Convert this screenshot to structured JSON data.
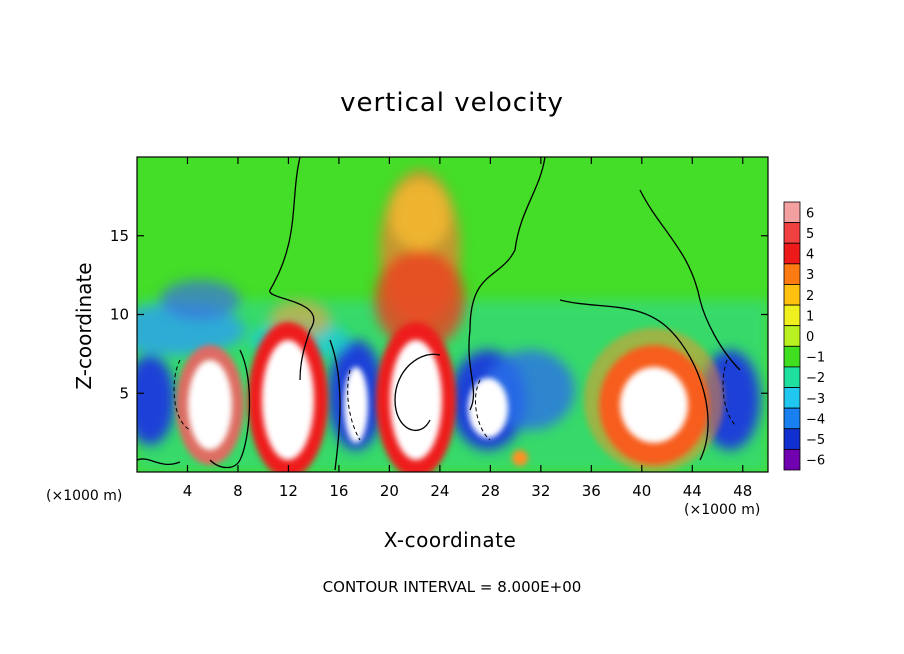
{
  "chart_data": {
    "type": "heatmap",
    "title": "vertical velocity",
    "xlabel": "X-coordinate",
    "ylabel": "Z-coordinate",
    "x_scale_label_left": "(×1000 m)",
    "x_scale_label_right": "(×1000 m)",
    "footer": "CONTOUR INTERVAL = 8.000E+00",
    "xlim": [
      0,
      50
    ],
    "ylim": [
      0,
      20
    ],
    "x_ticks": [
      4,
      8,
      12,
      16,
      20,
      24,
      28,
      32,
      36,
      40,
      44,
      48
    ],
    "x_tick_labels": [
      "4",
      "8",
      "12",
      "16",
      "20",
      "24",
      "28",
      "32",
      "36",
      "40",
      "44",
      "48"
    ],
    "y_ticks": [
      5,
      10,
      15
    ],
    "y_tick_labels": [
      "5",
      "10",
      "15"
    ],
    "colorbar": {
      "levels": [
        6,
        5,
        4,
        3,
        2,
        1,
        0,
        -1,
        -2,
        -3,
        -4,
        -5,
        -6
      ],
      "labels": [
        "6",
        "5",
        "4",
        "3",
        "2",
        "1",
        "0",
        "−1",
        "−2",
        "−3",
        "−4",
        "−5",
        "−6"
      ],
      "colors": [
        "#f4a0a0",
        "#f04040",
        "#ee1a1a",
        "#ff7a10",
        "#ffc010",
        "#f0f020",
        "#b8f020",
        "#40e020",
        "#20e0a0",
        "#20c8f0",
        "#1880f0",
        "#1030d0",
        "#7000b0"
      ]
    },
    "features": [
      {
        "x": 2.0,
        "kind": "downdraft",
        "z_range": [
          1,
          7
        ]
      },
      {
        "x": 5.5,
        "kind": "updraft",
        "z_range": [
          1,
          8
        ]
      },
      {
        "x": 12.5,
        "kind": "updraft",
        "z_range": [
          1,
          9.5
        ]
      },
      {
        "x": 17.0,
        "kind": "downdraft",
        "z_range": [
          1,
          7
        ]
      },
      {
        "x": 22.5,
        "kind": "updraft",
        "z_range": [
          1,
          18
        ]
      },
      {
        "x": 28.0,
        "kind": "downdraft",
        "z_range": [
          1,
          7
        ]
      },
      {
        "x": 42.0,
        "kind": "updraft",
        "z_range": [
          1,
          8
        ]
      },
      {
        "x": 47.0,
        "kind": "downdraft",
        "z_range": [
          1,
          7
        ]
      }
    ]
  }
}
